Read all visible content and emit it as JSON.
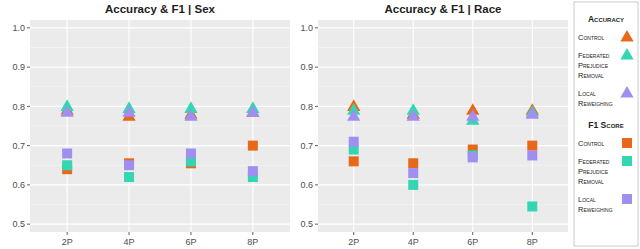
{
  "chart_data": [
    {
      "type": "scatter",
      "title": "Accuracy & F1 | Sex",
      "categories": [
        "2P",
        "4P",
        "6P",
        "8P"
      ],
      "ylim": [
        0.48,
        1.02
      ],
      "yticks": [
        0.5,
        0.6,
        0.7,
        0.8,
        0.9,
        {
          "value": 1,
          "label": "1.0"
        }
      ],
      "grid": true,
      "legend": "right",
      "series": [
        {
          "name": "Control",
          "color": "#E8681A",
          "marker": "triangle",
          "values": [
            0.79,
            0.775,
            0.78,
            0.785
          ]
        },
        {
          "name": "Federated Prejudice Removal",
          "color": "#33D6B2",
          "marker": "triangle",
          "values": [
            0.8,
            0.795,
            0.795,
            0.795
          ]
        },
        {
          "name": "Local Reweighing",
          "color": "#A08FF0",
          "marker": "triangle",
          "values": [
            0.785,
            0.785,
            0.775,
            0.785
          ]
        },
        {
          "name": "Control",
          "color": "#E8681A",
          "marker": "square",
          "values": [
            0.64,
            0.655,
            0.655,
            0.7
          ]
        },
        {
          "name": "Federated Prejudice Removal",
          "color": "#33D6B2",
          "marker": "square",
          "values": [
            0.65,
            0.62,
            0.66,
            0.62
          ]
        },
        {
          "name": "Local Reweighing",
          "color": "#A08FF0",
          "marker": "square",
          "values": [
            0.68,
            0.65,
            0.68,
            0.635
          ]
        }
      ]
    },
    {
      "type": "scatter",
      "title": "Accuracy & F1 | Race",
      "categories": [
        "2P",
        "4P",
        "6P",
        "8P"
      ],
      "ylim": [
        0.48,
        1.02
      ],
      "yticks": [
        0.5,
        0.6,
        0.7,
        0.8,
        0.9,
        {
          "value": 1,
          "label": "1.0"
        }
      ],
      "grid": true,
      "series": [
        {
          "color": "#E8681A",
          "marker": "triangle",
          "values": [
            0.8,
            0.78,
            0.79,
            0.79
          ]
        },
        {
          "color": "#33D6B2",
          "marker": "triangle",
          "values": [
            0.79,
            0.79,
            0.765,
            0.785
          ]
        },
        {
          "color": "#A08FF0",
          "marker": "triangle",
          "values": [
            0.775,
            0.775,
            0.775,
            0.78
          ]
        },
        {
          "color": "#E8681A",
          "marker": "square",
          "values": [
            0.66,
            0.655,
            0.69,
            0.7
          ]
        },
        {
          "color": "#33D6B2",
          "marker": "square",
          "values": [
            0.69,
            0.6,
            0.675,
            0.545
          ]
        },
        {
          "color": "#A08FF0",
          "marker": "square",
          "values": [
            0.71,
            0.63,
            0.67,
            0.675
          ]
        }
      ]
    }
  ],
  "legend_groups": [
    {
      "title": "Accuracy",
      "marker": "triangle"
    },
    {
      "title": "F1 Score",
      "marker": "square"
    }
  ]
}
